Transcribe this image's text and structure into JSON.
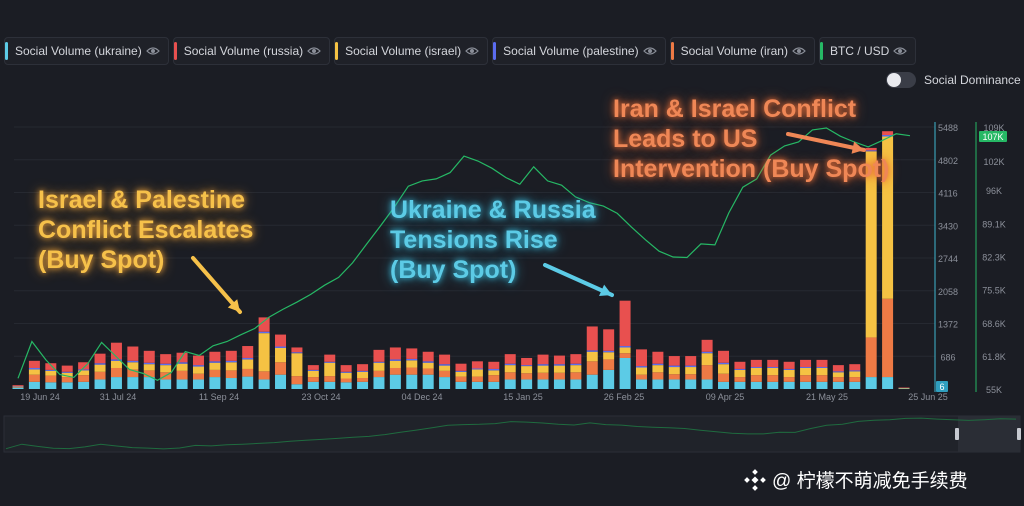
{
  "legend": [
    {
      "label": "Social Volume (ukraine)",
      "color": "#5ccbe6",
      "icon": "eye-icon"
    },
    {
      "label": "Social Volume (russia)",
      "color": "#e8504f",
      "icon": "eye-icon"
    },
    {
      "label": "Social Volume (israel)",
      "color": "#f5c243",
      "icon": "eye-icon"
    },
    {
      "label": "Social Volume (palestine)",
      "color": "#5b6cf0",
      "icon": "eye-icon"
    },
    {
      "label": "Social Volume (iran)",
      "color": "#ee7a45",
      "icon": "eye-icon"
    },
    {
      "label": "BTC / USD",
      "color": "#26b865",
      "icon": "eye-icon"
    }
  ],
  "dominance": {
    "label": "Social Dominance",
    "enabled": false
  },
  "annotations": {
    "israel": "Israel & Palestine\nConflict Escalates\n(Buy Spot)",
    "ukraine": "Ukraine & Russia\nTensions Rise\n(Buy Spot)",
    "iran": "Iran & Israel Conflict\nLeads to US\nIntervention (Buy Spot)"
  },
  "watermark": {
    "text": "@ 柠檬不萌减免手续费",
    "icon": "binance-logo-icon"
  },
  "chart_data": {
    "type": "bar",
    "x_ticks": [
      "19 Jun 24",
      "31 Jul 24",
      "11 Sep 24",
      "23 Oct 24",
      "04 Dec 24",
      "15 Jan 25",
      "26 Feb 25",
      "09 Apr 25",
      "21 May 25",
      "25 Jun 25"
    ],
    "left_axis": {
      "ticks": [
        "5488",
        "4802",
        "4116",
        "3430",
        "2744",
        "2058",
        "1372",
        "686"
      ],
      "min": 0,
      "max": 5488
    },
    "right_axis": {
      "ticks": [
        "109K",
        "102K",
        "96K",
        "89.1K",
        "82.3K",
        "75.5K",
        "68.6K",
        "61.8K",
        "55K"
      ],
      "min": 55000,
      "max": 109000
    },
    "current_badges": {
      "left": "6",
      "right": "107K"
    },
    "bars": [
      {
        "uk": 30,
        "ru": 20,
        "is": 15,
        "pa": 5,
        "ir": 10
      },
      {
        "uk": 150,
        "ru": 150,
        "is": 110,
        "pa": 30,
        "ir": 150
      },
      {
        "uk": 140,
        "ru": 140,
        "is": 100,
        "pa": 20,
        "ir": 140
      },
      {
        "uk": 140,
        "ru": 130,
        "is": 90,
        "pa": 20,
        "ir": 110
      },
      {
        "uk": 150,
        "ru": 150,
        "is": 100,
        "pa": 20,
        "ir": 140
      },
      {
        "uk": 200,
        "ru": 200,
        "is": 150,
        "pa": 30,
        "ir": 160
      },
      {
        "uk": 250,
        "ru": 350,
        "is": 150,
        "pa": 30,
        "ir": 190
      },
      {
        "uk": 250,
        "ru": 300,
        "is": 150,
        "pa": 30,
        "ir": 160
      },
      {
        "uk": 250,
        "ru": 250,
        "is": 130,
        "pa": 30,
        "ir": 140
      },
      {
        "uk": 200,
        "ru": 200,
        "is": 150,
        "pa": 30,
        "ir": 150
      },
      {
        "uk": 200,
        "ru": 200,
        "is": 150,
        "pa": 30,
        "ir": 180
      },
      {
        "uk": 200,
        "ru": 200,
        "is": 150,
        "pa": 30,
        "ir": 120
      },
      {
        "uk": 250,
        "ru": 200,
        "is": 150,
        "pa": 30,
        "ir": 150
      },
      {
        "uk": 230,
        "ru": 210,
        "is": 170,
        "pa": 30,
        "ir": 160
      },
      {
        "uk": 260,
        "ru": 250,
        "is": 200,
        "pa": 30,
        "ir": 160
      },
      {
        "uk": 200,
        "ru": 300,
        "is": 800,
        "pa": 30,
        "ir": 170
      },
      {
        "uk": 300,
        "ru": 250,
        "is": 300,
        "pa": 30,
        "ir": 260
      },
      {
        "uk": 100,
        "ru": 100,
        "is": 480,
        "pa": 20,
        "ir": 170
      },
      {
        "uk": 150,
        "ru": 100,
        "is": 130,
        "pa": 20,
        "ir": 100
      },
      {
        "uk": 150,
        "ru": 150,
        "is": 280,
        "pa": 20,
        "ir": 120
      },
      {
        "uk": 140,
        "ru": 140,
        "is": 120,
        "pa": 20,
        "ir": 80
      },
      {
        "uk": 150,
        "ru": 140,
        "is": 130,
        "pa": 20,
        "ir": 80
      },
      {
        "uk": 250,
        "ru": 250,
        "is": 170,
        "pa": 20,
        "ir": 130
      },
      {
        "uk": 300,
        "ru": 250,
        "is": 150,
        "pa": 30,
        "ir": 140
      },
      {
        "uk": 300,
        "ru": 220,
        "is": 150,
        "pa": 30,
        "ir": 150
      },
      {
        "uk": 300,
        "ru": 200,
        "is": 120,
        "pa": 30,
        "ir": 130
      },
      {
        "uk": 250,
        "ru": 200,
        "is": 110,
        "pa": 30,
        "ir": 130
      },
      {
        "uk": 150,
        "ru": 150,
        "is": 100,
        "pa": 20,
        "ir": 110
      },
      {
        "uk": 150,
        "ru": 150,
        "is": 150,
        "pa": 20,
        "ir": 110
      },
      {
        "uk": 150,
        "ru": 150,
        "is": 100,
        "pa": 30,
        "ir": 140
      },
      {
        "uk": 200,
        "ru": 200,
        "is": 150,
        "pa": 30,
        "ir": 150
      },
      {
        "uk": 200,
        "ru": 150,
        "is": 150,
        "pa": 20,
        "ir": 130
      },
      {
        "uk": 200,
        "ru": 200,
        "is": 150,
        "pa": 30,
        "ir": 140
      },
      {
        "uk": 200,
        "ru": 180,
        "is": 150,
        "pa": 30,
        "ir": 140
      },
      {
        "uk": 200,
        "ru": 200,
        "is": 150,
        "pa": 30,
        "ir": 150
      },
      {
        "uk": 300,
        "ru": 500,
        "is": 200,
        "pa": 30,
        "ir": 280
      },
      {
        "uk": 400,
        "ru": 450,
        "is": 150,
        "pa": 30,
        "ir": 220
      },
      {
        "uk": 650,
        "ru": 950,
        "is": 120,
        "pa": 30,
        "ir": 100
      },
      {
        "uk": 200,
        "ru": 350,
        "is": 150,
        "pa": 30,
        "ir": 100
      },
      {
        "uk": 200,
        "ru": 250,
        "is": 150,
        "pa": 30,
        "ir": 150
      },
      {
        "uk": 200,
        "ru": 200,
        "is": 150,
        "pa": 30,
        "ir": 110
      },
      {
        "uk": 200,
        "ru": 200,
        "is": 150,
        "pa": 30,
        "ir": 110
      },
      {
        "uk": 200,
        "ru": 250,
        "is": 250,
        "pa": 30,
        "ir": 300
      },
      {
        "uk": 150,
        "ru": 250,
        "is": 200,
        "pa": 30,
        "ir": 170
      },
      {
        "uk": 150,
        "ru": 150,
        "is": 150,
        "pa": 20,
        "ir": 100
      },
      {
        "uk": 150,
        "ru": 150,
        "is": 150,
        "pa": 20,
        "ir": 140
      },
      {
        "uk": 150,
        "ru": 150,
        "is": 150,
        "pa": 20,
        "ir": 140
      },
      {
        "uk": 150,
        "ru": 150,
        "is": 150,
        "pa": 20,
        "ir": 100
      },
      {
        "uk": 150,
        "ru": 150,
        "is": 150,
        "pa": 20,
        "ir": 140
      },
      {
        "uk": 150,
        "ru": 150,
        "is": 150,
        "pa": 20,
        "ir": 140
      },
      {
        "uk": 150,
        "ru": 130,
        "is": 100,
        "pa": 20,
        "ir": 100
      },
      {
        "uk": 150,
        "ru": 130,
        "is": 120,
        "pa": 20,
        "ir": 100
      },
      {
        "uk": 250,
        "ru": 50,
        "is": 3900,
        "pa": 20,
        "ir": 830
      },
      {
        "uk": 250,
        "ru": 80,
        "is": 3400,
        "pa": 30,
        "ir": 1640
      },
      {
        "uk": 10,
        "ru": 10,
        "is": 10,
        "pa": 0,
        "ir": 0
      }
    ],
    "btc_price": [
      57200,
      64800,
      61000,
      58000,
      57400,
      60200,
      64600,
      61800,
      59000,
      58200,
      56800,
      58400,
      62700,
      61900,
      63900,
      64800,
      66200,
      67500,
      69800,
      71400,
      72900,
      74500,
      76400,
      78000,
      81000,
      84800,
      88600,
      92500,
      96800,
      97900,
      98300,
      99600,
      103000,
      102000,
      100500,
      98600,
      97200,
      100800,
      97900,
      97000,
      94600,
      93400,
      92700,
      91200,
      88400,
      85800,
      83400,
      82200,
      82100,
      84900,
      84700,
      91300,
      96600,
      98300,
      103200,
      105100,
      105900,
      108400,
      108800,
      107100,
      105900,
      104900,
      106200,
      107600,
      107200
    ]
  }
}
